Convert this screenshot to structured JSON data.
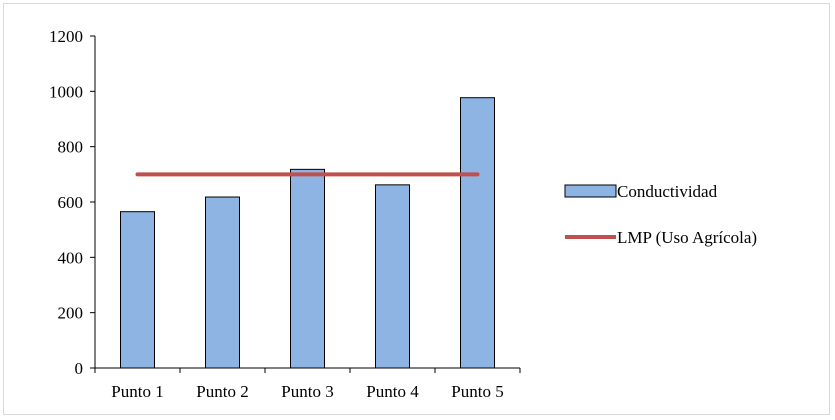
{
  "chart_data": {
    "type": "bar",
    "categories": [
      "Punto 1",
      "Punto 2",
      "Punto 3",
      "Punto 4",
      "Punto 5"
    ],
    "series": [
      {
        "name": "Conductividad",
        "type": "bar",
        "values": [
          565,
          618,
          718,
          662,
          977
        ],
        "color": "#8eb4e3",
        "stroke": "#000000"
      },
      {
        "name": "LMP (Uso Agrícola)",
        "type": "line",
        "values": [
          700,
          700,
          700,
          700,
          700
        ],
        "color": "#c0504d"
      }
    ],
    "title": "",
    "xlabel": "",
    "ylabel": "",
    "ylim": [
      0,
      1200
    ],
    "yticks": [
      0,
      200,
      400,
      600,
      800,
      1000,
      1200
    ],
    "grid": false,
    "legend_position": "right"
  }
}
